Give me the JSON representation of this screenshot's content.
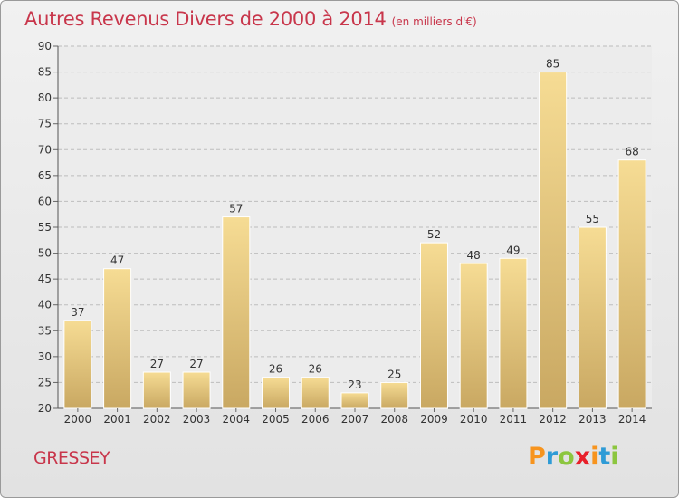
{
  "title": "Autres Revenus Divers de 2000 à 2014",
  "subtitle": "(en milliers d'€)",
  "place": "GRESSEY",
  "brand": {
    "letters": [
      "P",
      "r",
      "o",
      "x",
      "i",
      "t",
      "i"
    ],
    "colors": [
      "#f7941e",
      "#2e9bd6",
      "#8cc63f",
      "#e8202a",
      "#f7941e",
      "#2e9bd6",
      "#8cc63f"
    ]
  },
  "colors": {
    "title": "#c8364b",
    "bar_top": "#f6dc94",
    "bar_bottom": "#c9a862",
    "grid": "#bdbdbd"
  },
  "chart_data": {
    "type": "bar",
    "title": "Autres Revenus Divers de 2000 à 2014",
    "subtitle": "(en milliers d'€)",
    "categories": [
      "2000",
      "2001",
      "2002",
      "2003",
      "2004",
      "2005",
      "2006",
      "2007",
      "2008",
      "2009",
      "2010",
      "2011",
      "2012",
      "2013",
      "2014"
    ],
    "values": [
      37,
      47,
      27,
      27,
      57,
      26,
      26,
      23,
      25,
      52,
      48,
      49,
      85,
      55,
      68
    ],
    "ylim": [
      20,
      90
    ],
    "yticks": [
      20,
      25,
      30,
      35,
      40,
      45,
      50,
      55,
      60,
      65,
      70,
      75,
      80,
      85,
      90
    ],
    "grid": "horizontal dashed",
    "data_labels": true
  }
}
